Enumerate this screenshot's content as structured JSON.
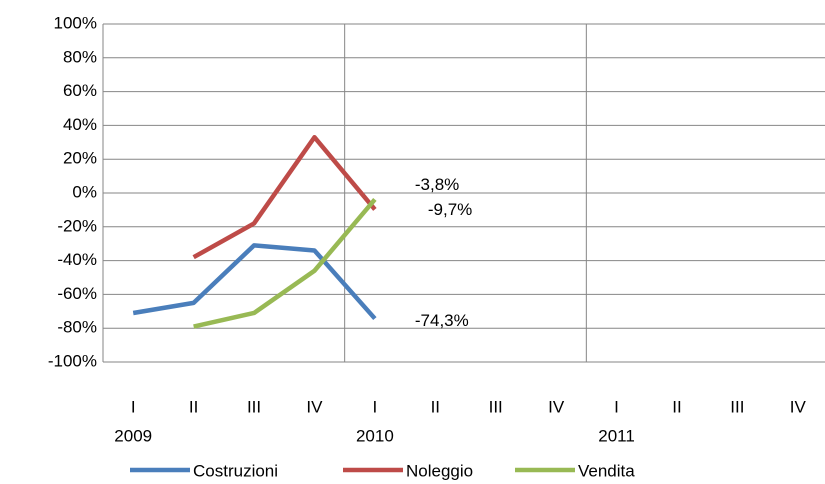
{
  "chart_data": {
    "type": "line",
    "categories": [
      "I",
      "II",
      "III",
      "IV",
      "I",
      "II",
      "III",
      "IV",
      "I",
      "II",
      "III",
      "IV"
    ],
    "groups": [
      "2009",
      "2010",
      "2011"
    ],
    "series": [
      {
        "name": "Costruzioni",
        "color": "#4a7ebb",
        "values": [
          -71,
          -65,
          -31,
          -34,
          -74.3,
          null,
          null,
          null,
          null,
          null,
          null,
          null
        ],
        "value_labels": [
          null,
          null,
          null,
          null,
          "-74,3%",
          null,
          null,
          null,
          null,
          null,
          null,
          null
        ]
      },
      {
        "name": "Noleggio",
        "color": "#be4b48",
        "values": [
          null,
          -38,
          -18,
          33,
          -9.7,
          null,
          null,
          null,
          null,
          null,
          null,
          null
        ],
        "value_labels": [
          null,
          null,
          null,
          null,
          "-9,7%",
          null,
          null,
          null,
          null,
          null,
          null,
          null
        ]
      },
      {
        "name": "Vendita",
        "color": "#98b954",
        "values": [
          null,
          -79,
          -71,
          -46,
          -3.8,
          null,
          null,
          null,
          null,
          null,
          null,
          null
        ],
        "value_labels": [
          null,
          null,
          null,
          null,
          "-3,8%",
          null,
          null,
          null,
          null,
          null,
          null,
          null
        ]
      }
    ],
    "ylim": [
      -100,
      100
    ],
    "yticks": [
      {
        "value": -100,
        "label": "-100%"
      },
      {
        "value": -80,
        "label": "-80%"
      },
      {
        "value": -60,
        "label": "-60%"
      },
      {
        "value": -40,
        "label": "-40%"
      },
      {
        "value": -20,
        "label": "-20%"
      },
      {
        "value": 0,
        "label": "0%"
      },
      {
        "value": 20,
        "label": "20%"
      },
      {
        "value": 40,
        "label": "40%"
      },
      {
        "value": 60,
        "label": "60%"
      },
      {
        "value": 80,
        "label": "80%"
      },
      {
        "value": 100,
        "label": "100%"
      }
    ],
    "grid": true,
    "legend": "bottom"
  }
}
